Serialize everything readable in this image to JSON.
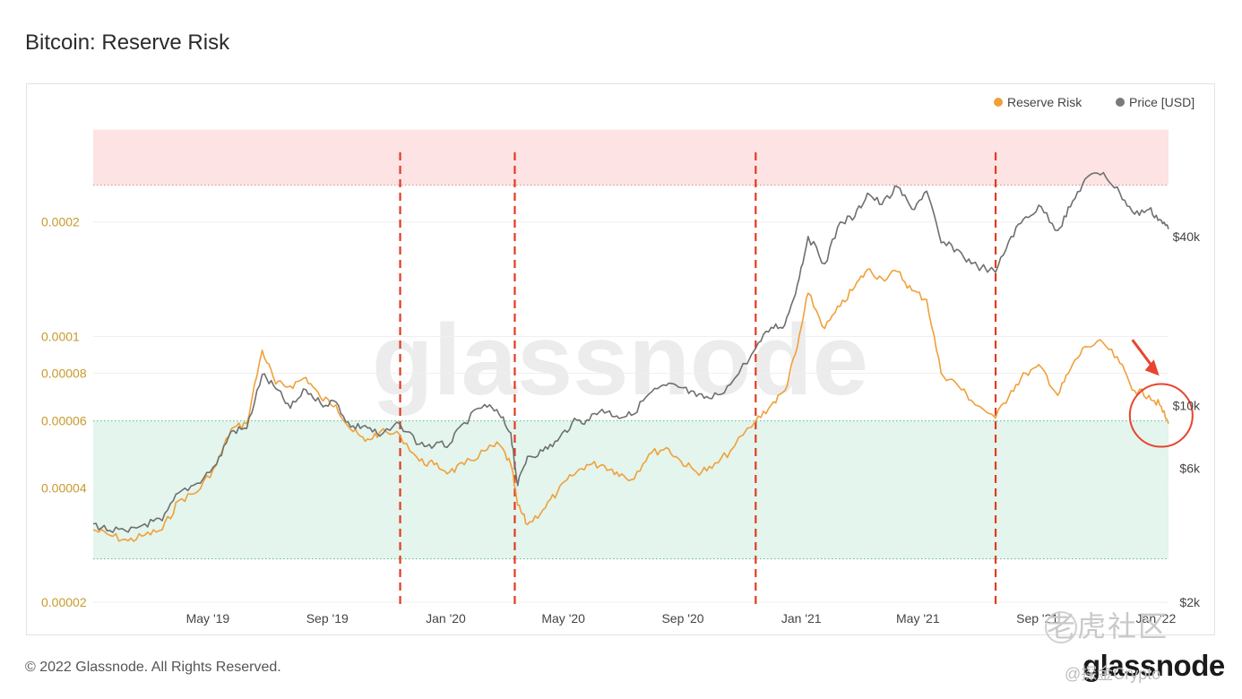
{
  "chart_data": {
    "type": "line",
    "title": "Bitcoin: Reserve Risk",
    "legend": {
      "placement": "top-right",
      "entries": [
        {
          "name": "Reserve Risk",
          "color": "#f0a03a"
        },
        {
          "name": "Price [USD]",
          "color": "#7a7a7a"
        }
      ]
    },
    "x_ticks": [
      "May '19",
      "Sep '19",
      "Jan '20",
      "May '20",
      "Sep '20",
      "Jan '21",
      "May '21",
      "Sep '21",
      "Jan '22"
    ],
    "x_tick_dates": [
      "2019-05-01",
      "2019-09-01",
      "2020-01-01",
      "2020-05-01",
      "2020-09-01",
      "2021-01-01",
      "2021-05-01",
      "2021-09-01",
      "2022-01-01"
    ],
    "xlim": [
      "2019-01-03",
      "2022-01-14"
    ],
    "left_axis": {
      "scale": "log",
      "ylim": [
        2e-05,
        0.0004
      ],
      "ticks": [
        {
          "label": "0.0002",
          "value": 0.0002
        },
        {
          "label": "0.0001",
          "value": 0.0001
        },
        {
          "label": "0.00008",
          "value": 8e-05
        },
        {
          "label": "0.00006",
          "value": 6e-05
        },
        {
          "label": "0.00004",
          "value": 4e-05
        },
        {
          "label": "0.00002",
          "value": 2e-05
        }
      ],
      "color": "#c79a2c"
    },
    "right_axis": {
      "scale": "log",
      "ylim": [
        2000,
        115000
      ],
      "ticks": [
        {
          "label": "$40k",
          "value": 40000
        },
        {
          "label": "$10k",
          "value": 10000
        },
        {
          "label": "$6k",
          "value": 6000
        },
        {
          "label": "$2k",
          "value": 2000
        }
      ]
    },
    "bands": [
      {
        "name": "high-risk-zone",
        "from": 0.00025,
        "to": 0.00035,
        "color": "#fde3e3"
      },
      {
        "name": "low-risk-zone",
        "from": 2.6e-05,
        "to": 6e-05,
        "color": "#e3f5ec"
      }
    ],
    "vertical_markers": [
      "2019-11-15",
      "2020-03-12",
      "2020-11-15",
      "2021-07-20"
    ],
    "series": [
      {
        "name": "Reserve Risk",
        "axis": "left",
        "color": "#f0a03a",
        "points": [
          [
            "2019-01-03",
            3.1e-05
          ],
          [
            "2019-01-20",
            3e-05
          ],
          [
            "2019-02-08",
            2.9e-05
          ],
          [
            "2019-02-25",
            3e-05
          ],
          [
            "2019-03-15",
            3.1e-05
          ],
          [
            "2019-04-01",
            3.7e-05
          ],
          [
            "2019-04-20",
            3.9e-05
          ],
          [
            "2019-05-10",
            4.6e-05
          ],
          [
            "2019-05-25",
            5.7e-05
          ],
          [
            "2019-06-10",
            5.9e-05
          ],
          [
            "2019-06-26",
            9.2e-05
          ],
          [
            "2019-07-10",
            7.5e-05
          ],
          [
            "2019-07-25",
            7.4e-05
          ],
          [
            "2019-08-10",
            7.8e-05
          ],
          [
            "2019-08-25",
            6.9e-05
          ],
          [
            "2019-09-10",
            6.6e-05
          ],
          [
            "2019-09-25",
            5.7e-05
          ],
          [
            "2019-10-10",
            5.3e-05
          ],
          [
            "2019-10-25",
            5.6e-05
          ],
          [
            "2019-11-15",
            5.5e-05
          ],
          [
            "2019-12-05",
            4.7e-05
          ],
          [
            "2019-12-20",
            4.6e-05
          ],
          [
            "2020-01-05",
            4.4e-05
          ],
          [
            "2020-01-20",
            4.6e-05
          ],
          [
            "2020-02-10",
            5e-05
          ],
          [
            "2020-02-25",
            5.2e-05
          ],
          [
            "2020-03-08",
            4.6e-05
          ],
          [
            "2020-03-15",
            3.6e-05
          ],
          [
            "2020-03-25",
            3.2e-05
          ],
          [
            "2020-04-10",
            3.5e-05
          ],
          [
            "2020-04-25",
            3.9e-05
          ],
          [
            "2020-05-10",
            4.3e-05
          ],
          [
            "2020-05-25",
            4.6e-05
          ],
          [
            "2020-06-10",
            4.6e-05
          ],
          [
            "2020-06-25",
            4.4e-05
          ],
          [
            "2020-07-10",
            4.2e-05
          ],
          [
            "2020-07-28",
            4.9e-05
          ],
          [
            "2020-08-15",
            5.1e-05
          ],
          [
            "2020-08-30",
            4.7e-05
          ],
          [
            "2020-09-15",
            4.4e-05
          ],
          [
            "2020-10-01",
            4.5e-05
          ],
          [
            "2020-10-20",
            5e-05
          ],
          [
            "2020-11-15",
            6e-05
          ],
          [
            "2020-12-01",
            6.6e-05
          ],
          [
            "2020-12-15",
            7.2e-05
          ],
          [
            "2020-12-28",
            9.4e-05
          ],
          [
            "2021-01-08",
            0.00013
          ],
          [
            "2021-01-25",
            0.000105
          ],
          [
            "2021-02-10",
            0.00012
          ],
          [
            "2021-02-25",
            0.000135
          ],
          [
            "2021-03-10",
            0.00015
          ],
          [
            "2021-03-25",
            0.000142
          ],
          [
            "2021-04-10",
            0.000148
          ],
          [
            "2021-04-25",
            0.000132
          ],
          [
            "2021-05-10",
            0.000125
          ],
          [
            "2021-05-25",
            8e-05
          ],
          [
            "2021-06-10",
            7.5e-05
          ],
          [
            "2021-06-25",
            6.8e-05
          ],
          [
            "2021-07-20",
            6.1e-05
          ],
          [
            "2021-08-05",
            7.2e-05
          ],
          [
            "2021-08-20",
            8e-05
          ],
          [
            "2021-09-05",
            8.3e-05
          ],
          [
            "2021-09-22",
            7e-05
          ],
          [
            "2021-10-05",
            8.2e-05
          ],
          [
            "2021-10-20",
            9.4e-05
          ],
          [
            "2021-11-08",
            9.6e-05
          ],
          [
            "2021-11-25",
            8.5e-05
          ],
          [
            "2021-12-10",
            7.2e-05
          ],
          [
            "2021-12-25",
            7e-05
          ],
          [
            "2022-01-05",
            6.6e-05
          ],
          [
            "2022-01-14",
            5.9e-05
          ]
        ]
      },
      {
        "name": "Price [USD]",
        "axis": "right",
        "color": "#6f6f6f",
        "points": [
          [
            "2019-01-03",
            3800
          ],
          [
            "2019-01-20",
            3600
          ],
          [
            "2019-02-08",
            3550
          ],
          [
            "2019-02-25",
            3800
          ],
          [
            "2019-03-15",
            3900
          ],
          [
            "2019-04-01",
            4900
          ],
          [
            "2019-04-20",
            5300
          ],
          [
            "2019-05-10",
            6200
          ],
          [
            "2019-05-25",
            8100
          ],
          [
            "2019-06-10",
            8300
          ],
          [
            "2019-06-26",
            12900
          ],
          [
            "2019-07-10",
            11500
          ],
          [
            "2019-07-25",
            9800
          ],
          [
            "2019-08-10",
            11400
          ],
          [
            "2019-08-25",
            10200
          ],
          [
            "2019-09-10",
            10300
          ],
          [
            "2019-09-25",
            8400
          ],
          [
            "2019-10-10",
            8500
          ],
          [
            "2019-10-25",
            7800
          ],
          [
            "2019-11-15",
            8600
          ],
          [
            "2019-12-05",
            7300
          ],
          [
            "2019-12-20",
            7200
          ],
          [
            "2020-01-05",
            7300
          ],
          [
            "2020-01-20",
            8700
          ],
          [
            "2020-02-10",
            10100
          ],
          [
            "2020-02-25",
            9300
          ],
          [
            "2020-03-08",
            8000
          ],
          [
            "2020-03-15",
            5200
          ],
          [
            "2020-03-25",
            6600
          ],
          [
            "2020-04-10",
            6900
          ],
          [
            "2020-04-25",
            7500
          ],
          [
            "2020-05-10",
            8700
          ],
          [
            "2020-05-25",
            8900
          ],
          [
            "2020-06-10",
            9700
          ],
          [
            "2020-06-25",
            9200
          ],
          [
            "2020-07-10",
            9250
          ],
          [
            "2020-07-28",
            11000
          ],
          [
            "2020-08-15",
            11800
          ],
          [
            "2020-08-30",
            11600
          ],
          [
            "2020-09-15",
            10800
          ],
          [
            "2020-10-01",
            10600
          ],
          [
            "2020-10-20",
            11900
          ],
          [
            "2020-11-15",
            16000
          ],
          [
            "2020-12-01",
            19000
          ],
          [
            "2020-12-15",
            19400
          ],
          [
            "2020-12-28",
            27000
          ],
          [
            "2021-01-08",
            40000
          ],
          [
            "2021-01-25",
            32000
          ],
          [
            "2021-02-10",
            45000
          ],
          [
            "2021-02-25",
            47000
          ],
          [
            "2021-03-10",
            57000
          ],
          [
            "2021-03-25",
            52000
          ],
          [
            "2021-04-10",
            60000
          ],
          [
            "2021-04-25",
            50000
          ],
          [
            "2021-05-10",
            58000
          ],
          [
            "2021-05-25",
            38000
          ],
          [
            "2021-06-10",
            36000
          ],
          [
            "2021-06-25",
            32000
          ],
          [
            "2021-07-20",
            29800
          ],
          [
            "2021-08-05",
            40000
          ],
          [
            "2021-08-20",
            47000
          ],
          [
            "2021-09-05",
            51000
          ],
          [
            "2021-09-22",
            42000
          ],
          [
            "2021-10-05",
            51000
          ],
          [
            "2021-10-20",
            64000
          ],
          [
            "2021-11-08",
            67500
          ],
          [
            "2021-11-25",
            57000
          ],
          [
            "2021-12-10",
            48000
          ],
          [
            "2021-12-25",
            50000
          ],
          [
            "2022-01-05",
            46000
          ],
          [
            "2022-01-14",
            42500
          ]
        ]
      }
    ],
    "annotations": [
      {
        "type": "watermark",
        "text": "glassnode"
      },
      {
        "type": "circle",
        "at": [
          "2022-01-12",
          6.2e-05
        ],
        "color": "#e8442e"
      },
      {
        "type": "arrow",
        "to": [
          "2022-01-10",
          7.8e-05
        ],
        "color": "#e8442e"
      }
    ]
  },
  "footer": {
    "copyright": "© 2022 Glassnode. All Rights Reserved.",
    "logo": "glassnode"
  },
  "overlay_watermark": {
    "text": "老虎社区",
    "handle": "@探金Crypto"
  }
}
